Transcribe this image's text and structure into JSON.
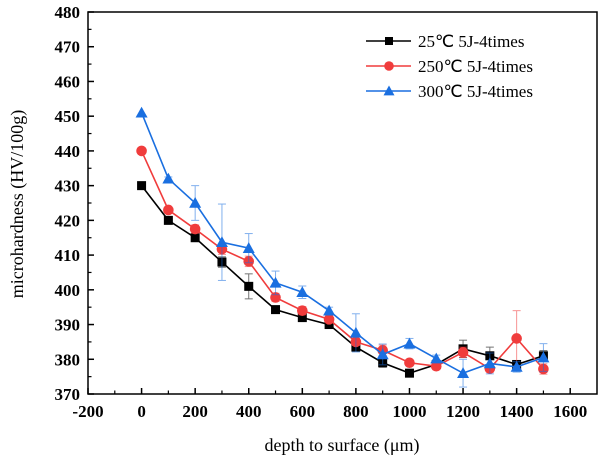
{
  "chart_data": {
    "type": "line",
    "title": "",
    "xlabel": "depth to surface (μm)",
    "ylabel": "microhardness (HV/100g)",
    "xlim": [
      -200,
      1700
    ],
    "ylim": [
      370,
      480
    ],
    "x_ticks": [
      -200,
      0,
      200,
      400,
      600,
      800,
      1000,
      1200,
      1400,
      1600
    ],
    "y_ticks": [
      370,
      380,
      390,
      400,
      410,
      420,
      430,
      440,
      450,
      460,
      470,
      480
    ],
    "grid": false,
    "legend_position": "top-right",
    "x": [
      0,
      100,
      200,
      300,
      400,
      500,
      600,
      700,
      800,
      900,
      1000,
      1100,
      1200,
      1300,
      1400,
      1500
    ],
    "series": [
      {
        "name": "25℃ 5J-4times",
        "color": "#000000",
        "marker": "square",
        "values": [
          430,
          420,
          415,
          408,
          401,
          394.3,
          392,
          390,
          383.5,
          379,
          376,
          378.5,
          383,
          381,
          378.5,
          381
        ],
        "errors": [
          0,
          0.5,
          0.8,
          1.5,
          3.6,
          1,
          1,
          0.8,
          1,
          1.3,
          0.5,
          1,
          2.5,
          2.5,
          1,
          1.5
        ]
      },
      {
        "name": "250℃ 5J-4times",
        "color": "#f03c3c",
        "marker": "circle",
        "values": [
          440,
          423,
          417.5,
          411.7,
          408.2,
          397.8,
          394,
          391.5,
          385,
          382.6,
          379,
          378,
          382,
          377.3,
          386,
          377.2
        ],
        "errors": [
          0,
          0.5,
          1.2,
          1.5,
          1.5,
          1.2,
          1.2,
          0.8,
          1,
          1.5,
          0.5,
          1,
          1.5,
          1,
          8,
          1.5
        ]
      },
      {
        "name": "300℃ 5J-4times",
        "color": "#1a6fe0",
        "marker": "triangle",
        "values": [
          451,
          432,
          425,
          413.7,
          412,
          402,
          399.3,
          394,
          387.6,
          381.4,
          384.5,
          380.2,
          376,
          378.8,
          377.8,
          380.5
        ],
        "errors": [
          0,
          0.5,
          5,
          11,
          4.2,
          3.4,
          1.8,
          1,
          5.5,
          3,
          1.5,
          1,
          4,
          3,
          1.5,
          4
        ]
      }
    ]
  }
}
